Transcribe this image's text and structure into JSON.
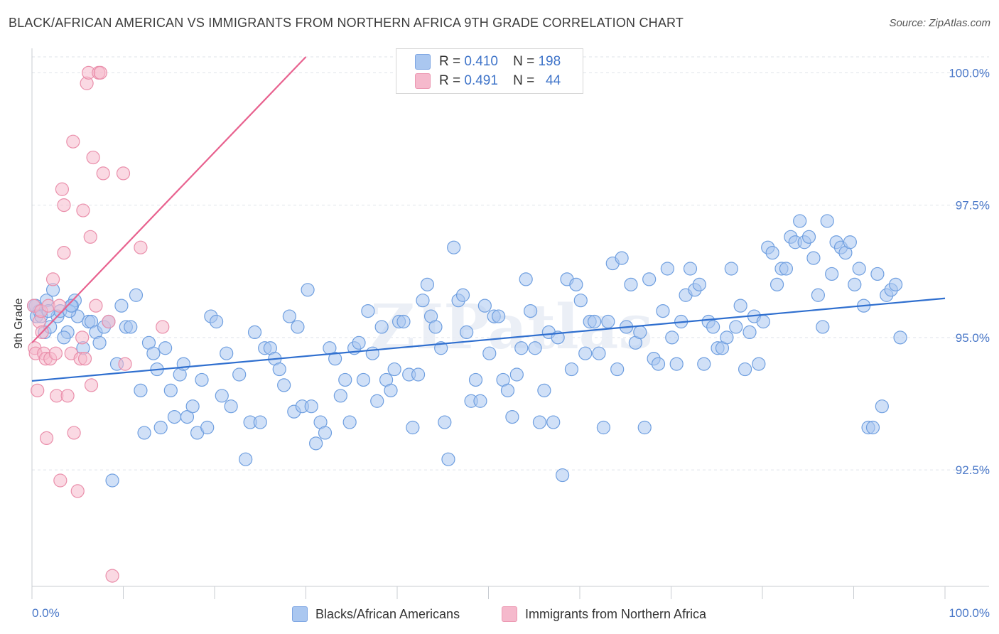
{
  "header": {
    "title": "BLACK/AFRICAN AMERICAN VS IMMIGRANTS FROM NORTHERN AFRICA 9TH GRADE CORRELATION CHART",
    "source": "Source: ZipAtlas.com"
  },
  "watermark": "ZIPatlas",
  "legend": {
    "rows": [
      {
        "r_label": "R =",
        "r_value": "0.410",
        "n_label": "N =",
        "n_value": "198",
        "color": "#aac7f0"
      },
      {
        "r_label": "R =",
        "r_value": "0.491",
        "n_label": "N =",
        "n_value": "44",
        "color": "#f5b9cc"
      }
    ]
  },
  "bottom_legend": [
    {
      "label": "Blacks/African Americans",
      "color": "#aac7f0"
    },
    {
      "label": "Immigrants from Northern Africa",
      "color": "#f5b9cc"
    }
  ],
  "chart_data": {
    "type": "scatter",
    "title": "BLACK/AFRICAN AMERICAN VS IMMIGRANTS FROM NORTHERN AFRICA 9TH GRADE CORRELATION CHART",
    "xlabel": "",
    "ylabel": "9th Grade",
    "xlim": [
      0,
      100
    ],
    "ylim": [
      90.3,
      100.3
    ],
    "x_ticks": [
      "0.0%",
      "100.0%"
    ],
    "y_ticks": [
      {
        "value": 100.0,
        "label": "100.0%"
      },
      {
        "value": 97.5,
        "label": "97.5%"
      },
      {
        "value": 95.0,
        "label": "95.0%"
      },
      {
        "value": 92.5,
        "label": "92.5%"
      }
    ],
    "grid": true,
    "legend_position": "top-center",
    "series": [
      {
        "name": "Blacks/African Americans",
        "color": "#aac7f0",
        "edge": "#6f9fe0",
        "trend": {
          "x": [
            0,
            100
          ],
          "y": [
            94.18,
            95.74
          ],
          "color": "#2f6fcf"
        },
        "points": [
          [
            0.4,
            95.6
          ],
          [
            0.8,
            95.5
          ],
          [
            1.4,
            95.1
          ],
          [
            1.6,
            95.7
          ],
          [
            2.3,
            95.9
          ],
          [
            2.8,
            95.4
          ],
          [
            3.1,
            95.5
          ],
          [
            3.9,
            95.1
          ],
          [
            4.4,
            95.6
          ],
          [
            4.7,
            95.7
          ],
          [
            5.0,
            95.4
          ],
          [
            5.6,
            94.8
          ],
          [
            6.2,
            95.3
          ],
          [
            6.5,
            95.3
          ],
          [
            7.0,
            95.1
          ],
          [
            7.4,
            94.9
          ],
          [
            7.9,
            95.2
          ],
          [
            8.4,
            95.3
          ],
          [
            8.8,
            92.3
          ],
          [
            9.3,
            94.5
          ],
          [
            9.8,
            95.6
          ],
          [
            10.3,
            95.2
          ],
          [
            10.8,
            95.2
          ],
          [
            11.4,
            95.8
          ],
          [
            11.9,
            94.0
          ],
          [
            12.3,
            93.2
          ],
          [
            12.8,
            94.9
          ],
          [
            13.3,
            94.7
          ],
          [
            13.7,
            94.4
          ],
          [
            14.1,
            93.3
          ],
          [
            14.6,
            94.8
          ],
          [
            15.2,
            94.0
          ],
          [
            15.6,
            93.5
          ],
          [
            16.2,
            94.3
          ],
          [
            16.6,
            94.5
          ],
          [
            17.0,
            93.5
          ],
          [
            17.6,
            93.7
          ],
          [
            18.1,
            93.2
          ],
          [
            18.6,
            94.2
          ],
          [
            19.2,
            93.3
          ],
          [
            19.6,
            95.4
          ],
          [
            20.2,
            95.3
          ],
          [
            20.8,
            93.9
          ],
          [
            21.3,
            94.7
          ],
          [
            21.8,
            93.7
          ],
          [
            22.7,
            94.3
          ],
          [
            23.4,
            92.7
          ],
          [
            23.9,
            93.4
          ],
          [
            24.4,
            95.1
          ],
          [
            25.0,
            93.4
          ],
          [
            25.5,
            94.8
          ],
          [
            26.1,
            94.8
          ],
          [
            26.6,
            94.6
          ],
          [
            27.1,
            94.4
          ],
          [
            27.6,
            94.1
          ],
          [
            28.2,
            95.4
          ],
          [
            28.7,
            93.6
          ],
          [
            29.1,
            95.2
          ],
          [
            29.6,
            93.7
          ],
          [
            30.2,
            95.9
          ],
          [
            30.6,
            93.7
          ],
          [
            31.1,
            93.0
          ],
          [
            31.6,
            93.4
          ],
          [
            32.1,
            93.2
          ],
          [
            32.6,
            94.8
          ],
          [
            33.2,
            94.6
          ],
          [
            33.8,
            93.9
          ],
          [
            34.3,
            94.2
          ],
          [
            34.8,
            93.4
          ],
          [
            35.3,
            94.8
          ],
          [
            35.8,
            94.9
          ],
          [
            36.3,
            94.2
          ],
          [
            36.8,
            95.5
          ],
          [
            37.3,
            94.7
          ],
          [
            37.8,
            93.8
          ],
          [
            38.3,
            95.2
          ],
          [
            38.8,
            94.2
          ],
          [
            39.3,
            94.0
          ],
          [
            39.7,
            94.4
          ],
          [
            40.2,
            95.3
          ],
          [
            40.7,
            95.3
          ],
          [
            41.3,
            94.3
          ],
          [
            41.7,
            93.3
          ],
          [
            42.3,
            94.3
          ],
          [
            42.8,
            95.7
          ],
          [
            43.3,
            96.0
          ],
          [
            43.7,
            95.4
          ],
          [
            44.2,
            95.2
          ],
          [
            44.8,
            94.8
          ],
          [
            45.2,
            93.4
          ],
          [
            45.6,
            92.7
          ],
          [
            46.2,
            96.7
          ],
          [
            46.7,
            95.7
          ],
          [
            47.2,
            95.8
          ],
          [
            47.6,
            95.1
          ],
          [
            48.1,
            93.8
          ],
          [
            48.6,
            94.2
          ],
          [
            49.1,
            93.8
          ],
          [
            49.6,
            95.6
          ],
          [
            50.1,
            94.7
          ],
          [
            50.6,
            95.4
          ],
          [
            51.1,
            95.4
          ],
          [
            51.6,
            94.2
          ],
          [
            52.1,
            94.0
          ],
          [
            52.6,
            93.5
          ],
          [
            53.1,
            94.3
          ],
          [
            53.6,
            94.8
          ],
          [
            54.1,
            96.1
          ],
          [
            54.6,
            95.5
          ],
          [
            55.1,
            94.8
          ],
          [
            55.6,
            93.4
          ],
          [
            56.1,
            94.0
          ],
          [
            56.6,
            95.1
          ],
          [
            57.1,
            93.4
          ],
          [
            57.6,
            95.0
          ],
          [
            58.1,
            92.4
          ],
          [
            58.6,
            96.1
          ],
          [
            59.1,
            94.4
          ],
          [
            59.6,
            96.0
          ],
          [
            60.1,
            95.7
          ],
          [
            60.6,
            94.7
          ],
          [
            61.1,
            95.3
          ],
          [
            61.6,
            95.3
          ],
          [
            62.1,
            94.7
          ],
          [
            62.6,
            93.3
          ],
          [
            63.1,
            95.3
          ],
          [
            63.6,
            96.4
          ],
          [
            64.1,
            94.4
          ],
          [
            64.6,
            96.5
          ],
          [
            65.1,
            95.2
          ],
          [
            65.6,
            96.0
          ],
          [
            66.1,
            94.9
          ],
          [
            66.6,
            95.1
          ],
          [
            67.1,
            93.3
          ],
          [
            67.6,
            96.1
          ],
          [
            68.1,
            94.6
          ],
          [
            68.6,
            94.5
          ],
          [
            69.1,
            95.5
          ],
          [
            69.6,
            96.3
          ],
          [
            70.1,
            95.0
          ],
          [
            70.6,
            94.5
          ],
          [
            71.1,
            95.3
          ],
          [
            71.6,
            95.8
          ],
          [
            72.1,
            96.3
          ],
          [
            72.6,
            95.9
          ],
          [
            73.1,
            96.0
          ],
          [
            73.6,
            94.5
          ],
          [
            74.1,
            95.3
          ],
          [
            74.6,
            95.2
          ],
          [
            75.1,
            94.8
          ],
          [
            75.6,
            94.8
          ],
          [
            76.1,
            95.0
          ],
          [
            76.6,
            96.3
          ],
          [
            77.1,
            95.2
          ],
          [
            77.6,
            95.6
          ],
          [
            78.1,
            94.4
          ],
          [
            78.6,
            95.1
          ],
          [
            79.1,
            95.4
          ],
          [
            79.6,
            94.5
          ],
          [
            80.1,
            95.3
          ],
          [
            80.6,
            96.7
          ],
          [
            81.1,
            96.6
          ],
          [
            81.6,
            96.0
          ],
          [
            82.1,
            96.3
          ],
          [
            82.6,
            96.3
          ],
          [
            83.1,
            96.9
          ],
          [
            83.6,
            96.8
          ],
          [
            84.1,
            97.2
          ],
          [
            84.6,
            96.8
          ],
          [
            85.1,
            96.9
          ],
          [
            85.6,
            96.5
          ],
          [
            86.1,
            95.8
          ],
          [
            86.6,
            95.2
          ],
          [
            87.1,
            97.2
          ],
          [
            87.6,
            96.2
          ],
          [
            88.1,
            96.8
          ],
          [
            88.6,
            96.7
          ],
          [
            89.1,
            96.6
          ],
          [
            89.6,
            96.8
          ],
          [
            90.1,
            96.0
          ],
          [
            90.6,
            96.3
          ],
          [
            91.1,
            95.6
          ],
          [
            91.6,
            93.3
          ],
          [
            92.1,
            93.3
          ],
          [
            92.6,
            96.2
          ],
          [
            93.1,
            93.7
          ],
          [
            93.6,
            95.8
          ],
          [
            94.1,
            95.9
          ],
          [
            94.6,
            96.0
          ],
          [
            95.1,
            95.0
          ],
          [
            0.2,
            95.6
          ],
          [
            0.5,
            95.4
          ],
          [
            1.0,
            95.4
          ],
          [
            1.8,
            95.5
          ],
          [
            2.0,
            95.2
          ],
          [
            3.5,
            95.0
          ],
          [
            4.1,
            95.5
          ],
          [
            4.3,
            95.6
          ]
        ]
      },
      {
        "name": "Immigrants from Northern Africa",
        "color": "#f5b9cc",
        "edge": "#ea8fab",
        "trend": {
          "x": [
            0,
            30
          ],
          "y": [
            94.9,
            100.3
          ],
          "color": "#e8628f"
        },
        "points": [
          [
            0.2,
            95.6
          ],
          [
            0.3,
            94.8
          ],
          [
            0.4,
            94.7
          ],
          [
            0.6,
            94.0
          ],
          [
            0.8,
            95.3
          ],
          [
            1.0,
            95.5
          ],
          [
            1.1,
            95.1
          ],
          [
            1.3,
            94.7
          ],
          [
            1.5,
            94.6
          ],
          [
            1.6,
            93.1
          ],
          [
            1.8,
            95.6
          ],
          [
            2.0,
            94.6
          ],
          [
            2.3,
            96.1
          ],
          [
            2.6,
            94.7
          ],
          [
            2.7,
            93.9
          ],
          [
            3.0,
            95.6
          ],
          [
            3.1,
            92.3
          ],
          [
            3.3,
            97.8
          ],
          [
            3.5,
            96.6
          ],
          [
            3.5,
            97.5
          ],
          [
            3.9,
            93.9
          ],
          [
            4.3,
            94.7
          ],
          [
            4.5,
            98.7
          ],
          [
            4.6,
            93.2
          ],
          [
            5.0,
            92.1
          ],
          [
            5.3,
            94.6
          ],
          [
            5.5,
            95.0
          ],
          [
            5.6,
            97.4
          ],
          [
            5.8,
            94.6
          ],
          [
            6.0,
            99.8
          ],
          [
            6.2,
            100.0
          ],
          [
            6.4,
            96.9
          ],
          [
            6.5,
            94.1
          ],
          [
            6.7,
            98.4
          ],
          [
            7.0,
            95.6
          ],
          [
            7.3,
            100.0
          ],
          [
            7.5,
            100.0
          ],
          [
            7.8,
            98.1
          ],
          [
            8.4,
            95.3
          ],
          [
            8.8,
            90.5
          ],
          [
            10.0,
            98.1
          ],
          [
            10.2,
            94.5
          ],
          [
            11.9,
            96.7
          ],
          [
            14.3,
            95.2
          ]
        ]
      }
    ]
  }
}
